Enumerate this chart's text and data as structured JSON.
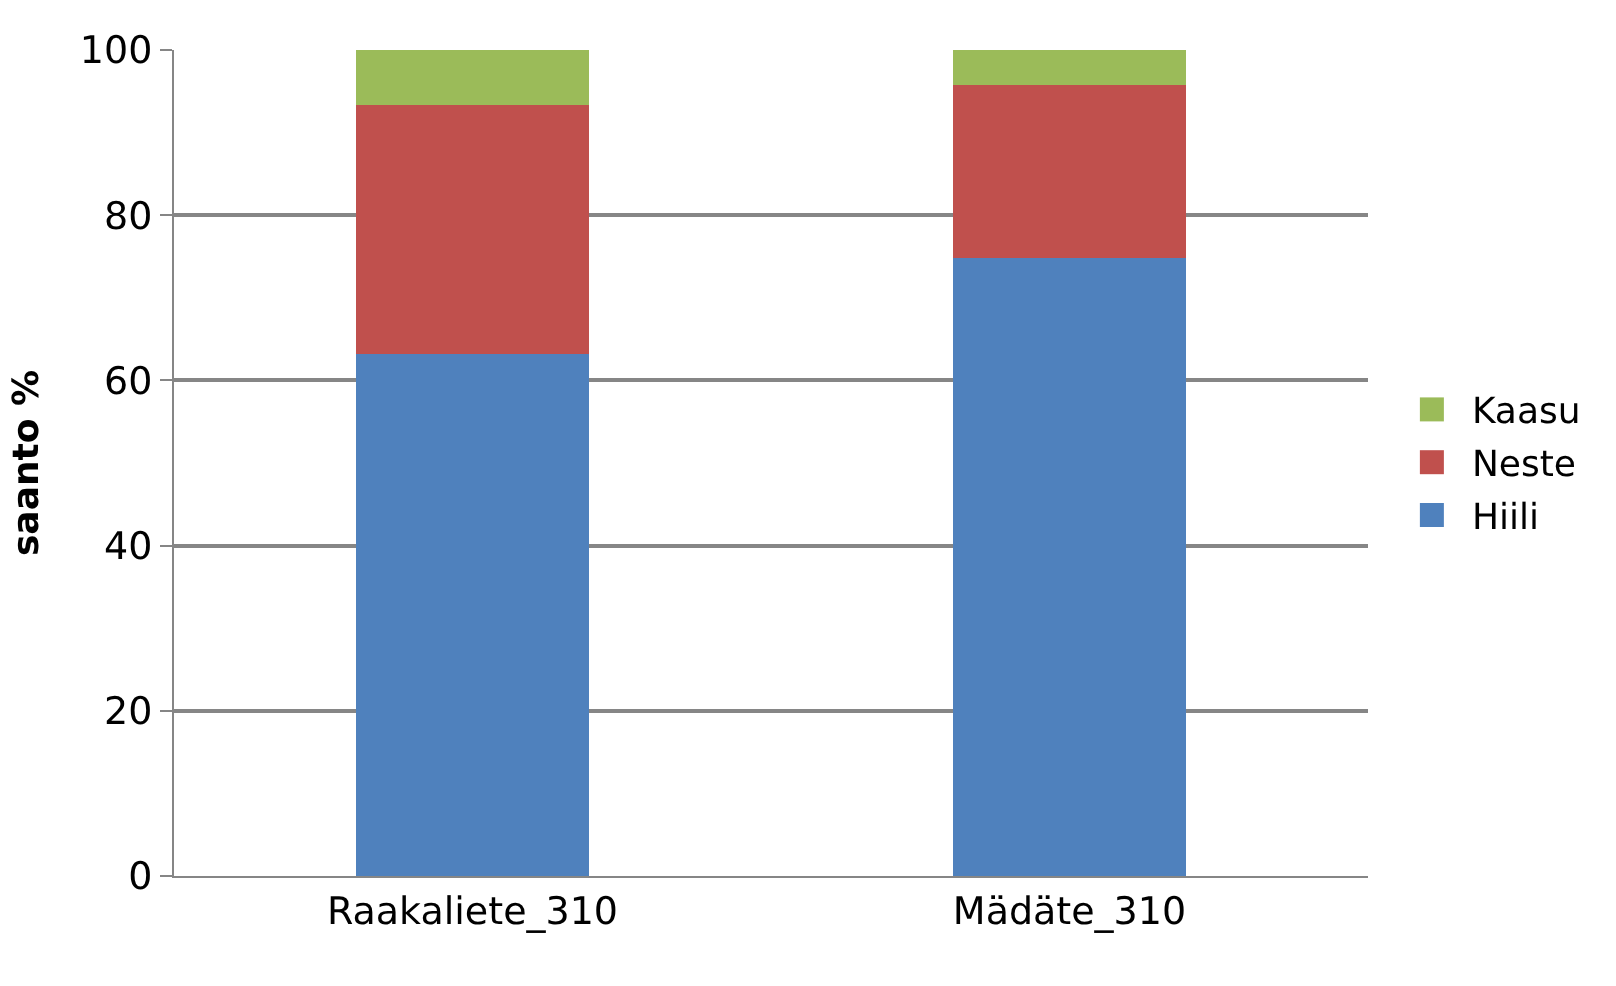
{
  "chart_data": {
    "type": "bar",
    "stacked": true,
    "ylabel": "saanto %",
    "categories": [
      "Raakaliete_310",
      "Mädäte_310"
    ],
    "series": [
      {
        "name": "Hiili",
        "color": "#4f81bd",
        "values": [
          63.2,
          74.8
        ]
      },
      {
        "name": "Neste",
        "color": "#c0504d",
        "values": [
          30.1,
          21.0
        ]
      },
      {
        "name": "Kaasu",
        "color": "#9bbb59",
        "values": [
          6.7,
          4.2
        ]
      }
    ],
    "ylim": [
      0,
      100
    ],
    "yticks": [
      0,
      20,
      40,
      60,
      80,
      100
    ],
    "grid": "y",
    "legend": "right"
  }
}
